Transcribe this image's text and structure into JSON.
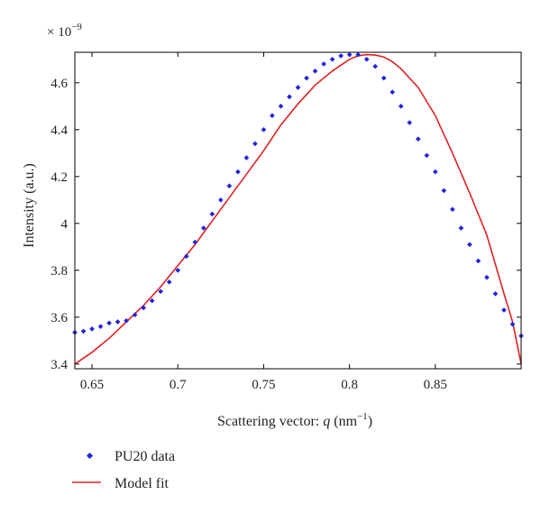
{
  "chart_data": {
    "type": "line",
    "xlabel_main": "Scattering vector: ",
    "xlabel_var": "q",
    "xlabel_unit_open": " (nm",
    "xlabel_unit_exp": "−1",
    "xlabel_unit_close": ")",
    "ylabel": "Intensity (a.u.)",
    "y_multiplier_base": "× 10",
    "y_multiplier_exp": "−9",
    "xlim": [
      0.64,
      0.9
    ],
    "ylim": [
      3.38,
      4.73
    ],
    "x_ticks": [
      0.65,
      0.7,
      0.75,
      0.8,
      0.85
    ],
    "x_tick_labels": [
      "0.65",
      "0.7",
      "0.75",
      "0.8",
      "0.85"
    ],
    "y_ticks": [
      3.4,
      3.6,
      3.8,
      4.0,
      4.2,
      4.4,
      4.6
    ],
    "y_tick_labels": [
      "3.4",
      "3.6",
      "3.8",
      "4",
      "4.2",
      "4.4",
      "4.6"
    ],
    "legend_position": "bottom-left",
    "series": [
      {
        "name": "PU20 data",
        "style": "markers",
        "color": "#2222dd",
        "x": [
          0.64,
          0.645,
          0.65,
          0.655,
          0.66,
          0.665,
          0.67,
          0.675,
          0.68,
          0.685,
          0.69,
          0.695,
          0.7,
          0.705,
          0.71,
          0.715,
          0.72,
          0.725,
          0.73,
          0.735,
          0.74,
          0.745,
          0.75,
          0.755,
          0.76,
          0.765,
          0.77,
          0.775,
          0.78,
          0.785,
          0.79,
          0.795,
          0.8,
          0.805,
          0.81,
          0.815,
          0.82,
          0.825,
          0.83,
          0.835,
          0.84,
          0.845,
          0.85,
          0.855,
          0.86,
          0.865,
          0.87,
          0.875,
          0.88,
          0.885,
          0.89,
          0.895,
          0.9
        ],
        "y": [
          3.535,
          3.54,
          3.55,
          3.56,
          3.575,
          3.58,
          3.585,
          3.61,
          3.64,
          3.67,
          3.71,
          3.75,
          3.8,
          3.86,
          3.92,
          3.98,
          4.04,
          4.1,
          4.16,
          4.22,
          4.28,
          4.34,
          4.4,
          4.46,
          4.5,
          4.54,
          4.58,
          4.62,
          4.65,
          4.68,
          4.7,
          4.715,
          4.72,
          4.72,
          4.7,
          4.67,
          4.62,
          4.56,
          4.5,
          4.43,
          4.36,
          4.29,
          4.22,
          4.14,
          4.06,
          3.98,
          3.91,
          3.84,
          3.77,
          3.7,
          3.63,
          3.57,
          3.52
        ]
      },
      {
        "name": "Model fit",
        "style": "line",
        "color": "#e02020",
        "x": [
          0.64,
          0.65,
          0.66,
          0.67,
          0.68,
          0.69,
          0.7,
          0.71,
          0.72,
          0.73,
          0.74,
          0.75,
          0.76,
          0.77,
          0.78,
          0.79,
          0.8,
          0.805,
          0.81,
          0.815,
          0.82,
          0.825,
          0.83,
          0.84,
          0.85,
          0.86,
          0.87,
          0.88,
          0.89,
          0.895,
          0.9
        ],
        "y": [
          3.4,
          3.45,
          3.51,
          3.58,
          3.65,
          3.73,
          3.82,
          3.91,
          4.01,
          4.11,
          4.21,
          4.31,
          4.42,
          4.51,
          4.59,
          4.65,
          4.7,
          4.715,
          4.72,
          4.718,
          4.71,
          4.69,
          4.66,
          4.58,
          4.46,
          4.3,
          4.13,
          3.95,
          3.7,
          3.58,
          3.4
        ]
      }
    ]
  }
}
